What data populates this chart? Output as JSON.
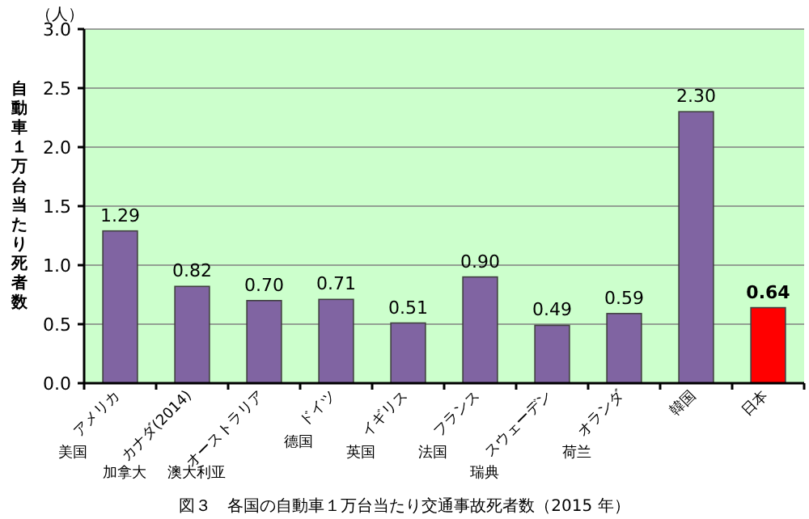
{
  "chart_data": {
    "type": "bar",
    "title": "図３　各国の自動車１万台当たり交通事故死者数（2015 年）",
    "ylabel": "自動車１万台当たり死者数",
    "categories": [
      "アメリカ",
      "カナダ(2014)",
      "オーストラリア",
      "ドイツ",
      "イギリス",
      "フランス",
      "スウェーデン",
      "オランダ",
      "韓国",
      "日本"
    ],
    "values": [
      1.29,
      0.82,
      0.7,
      0.71,
      0.51,
      0.9,
      0.49,
      0.59,
      2.3,
      0.64
    ],
    "colors": [
      "#8064a2",
      "#8064a2",
      "#8064a2",
      "#8064a2",
      "#8064a2",
      "#8064a2",
      "#8064a2",
      "#8064a2",
      "#8064a2",
      "#ff0000"
    ],
    "value_labels": [
      "1.29",
      "0.82",
      "0.70",
      "0.71",
      "0.51",
      "0.90",
      "0.49",
      "0.59",
      "2.30",
      "0.64"
    ],
    "ylim": [
      0,
      3
    ],
    "yticks": [
      "0.0",
      "0.5",
      "1.0",
      "1.5",
      "2.0",
      "2.5",
      "3.0"
    ],
    "grid": "y",
    "annotations": [
      "（人）",
      "美国",
      "加拿大",
      "澳大利亚",
      "德国",
      "英国",
      "法国",
      "瑞典",
      "荷兰"
    ]
  }
}
